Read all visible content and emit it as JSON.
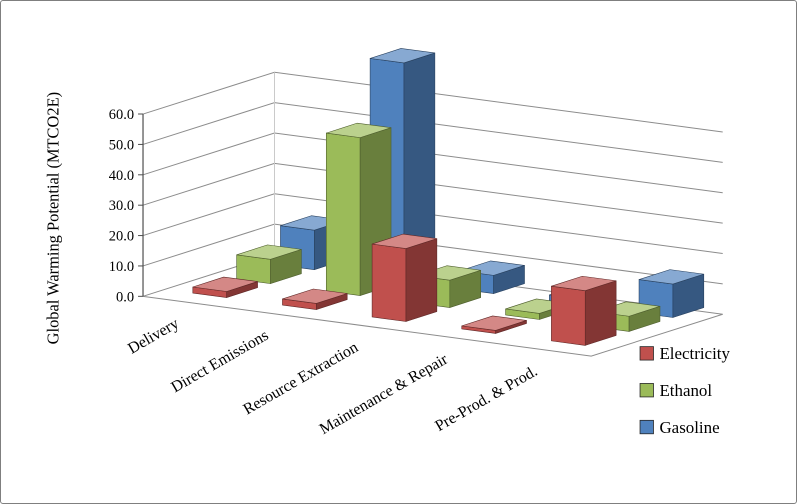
{
  "chart_data": {
    "type": "bar",
    "projection": "3d",
    "title": "",
    "ylabel": "Global Warming Potential (MTCO2E)",
    "categories": [
      "Delivery",
      "Direct Emissions",
      "Resource Extraction",
      "Maintenance & Repair",
      "Pre-Prod. & Prod."
    ],
    "series": [
      {
        "name": "Electricity",
        "color": "#C0504D",
        "values": [
          2,
          2,
          24,
          1,
          18
        ]
      },
      {
        "name": "Ethanol",
        "color": "#9BBB59",
        "values": [
          8,
          52,
          9,
          2,
          5
        ]
      },
      {
        "name": "Gasoline",
        "color": "#4F81BD",
        "values": [
          13,
          72,
          6,
          2,
          11
        ]
      }
    ],
    "ylim": [
      0,
      60
    ],
    "ytick_step": 10,
    "ytick_labels": [
      "0.0",
      "10.0",
      "20.0",
      "30.0",
      "40.0",
      "50.0",
      "60.0"
    ],
    "grid": true,
    "legend_position": "right-bottom",
    "background": "#FFFFFF",
    "frame_border_color": "#7F7F7F"
  }
}
